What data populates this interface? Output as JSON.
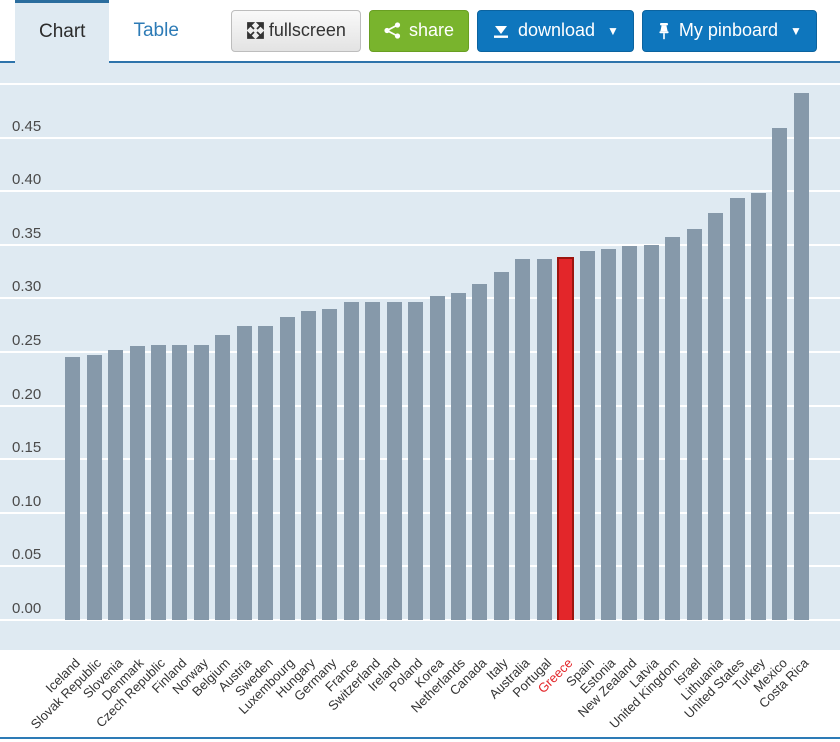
{
  "toolbar": {
    "tabs": [
      {
        "label": "Chart",
        "active": true
      },
      {
        "label": "Table",
        "active": false
      }
    ],
    "fullscreen_label": "fullscreen",
    "share_label": "share",
    "download_label": "download",
    "pinboard_label": "My pinboard",
    "caret": "▼"
  },
  "colors": {
    "tab_accent_blue": "#2e74ab",
    "tab_text_blue": "#2d7bb6",
    "button_blue": "#0e76bd",
    "button_green": "#79b42d",
    "plot_background": "#dfeaf2",
    "bar_color": "#8699aa",
    "highlight_color": "#e3262a",
    "gridline_color": "#ffffff",
    "bottom_border": "#2d7bb6"
  },
  "chart_data": {
    "type": "bar",
    "title": "",
    "xlabel": "",
    "ylabel": "",
    "categories": [
      "Iceland",
      "Slovak Republic",
      "Slovenia",
      "Denmark",
      "Czech Republic",
      "Finland",
      "Norway",
      "Belgium",
      "Austria",
      "Sweden",
      "Luxembourg",
      "Hungary",
      "Germany",
      "France",
      "Switzerland",
      "Ireland",
      "Poland",
      "Korea",
      "Netherlands",
      "Canada",
      "Italy",
      "Australia",
      "Portugal",
      "Greece",
      "Spain",
      "Estonia",
      "New Zealand",
      "Latvia",
      "United Kingdom",
      "Israel",
      "Lithuania",
      "United States",
      "Turkey",
      "Mexico",
      "Costa Rica"
    ],
    "values": [
      0.245,
      0.247,
      0.252,
      0.256,
      0.257,
      0.257,
      0.257,
      0.266,
      0.274,
      0.274,
      0.283,
      0.288,
      0.29,
      0.297,
      0.297,
      0.297,
      0.297,
      0.302,
      0.305,
      0.313,
      0.325,
      0.337,
      0.337,
      0.339,
      0.344,
      0.346,
      0.349,
      0.35,
      0.357,
      0.365,
      0.38,
      0.394,
      0.398,
      0.459,
      0.492
    ],
    "highlight_category": "Greece",
    "highlight_index": 23,
    "yticks": [
      "0.00",
      "0.05",
      "0.10",
      "0.15",
      "0.20",
      "0.25",
      "0.30",
      "0.35",
      "0.40",
      "0.45"
    ],
    "ylim": [
      0,
      0.5
    ],
    "ytick_step": 0.05,
    "grid": true,
    "legend": false,
    "sort": "ascending"
  }
}
